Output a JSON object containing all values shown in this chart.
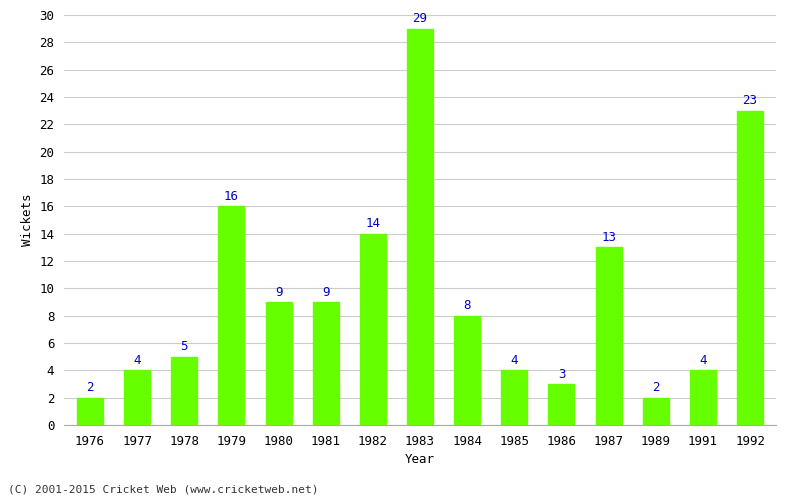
{
  "years": [
    "1976",
    "1977",
    "1978",
    "1979",
    "1980",
    "1981",
    "1982",
    "1983",
    "1984",
    "1985",
    "1986",
    "1987",
    "1989",
    "1991",
    "1992"
  ],
  "wickets": [
    2,
    4,
    5,
    16,
    9,
    9,
    14,
    29,
    8,
    4,
    3,
    13,
    2,
    4,
    23
  ],
  "bar_color": "#66ff00",
  "bar_edge_color": "#66ff00",
  "label_color": "#0000cc",
  "xlabel": "Year",
  "ylabel": "Wickets",
  "ylim": [
    0,
    30
  ],
  "yticks": [
    0,
    2,
    4,
    6,
    8,
    10,
    12,
    14,
    16,
    18,
    20,
    22,
    24,
    26,
    28,
    30
  ],
  "footnote": "(C) 2001-2015 Cricket Web (www.cricketweb.net)",
  "background_color": "#ffffff",
  "grid_color": "#cccccc",
  "label_fontsize": 9,
  "axis_fontsize": 9,
  "footnote_fontsize": 8
}
